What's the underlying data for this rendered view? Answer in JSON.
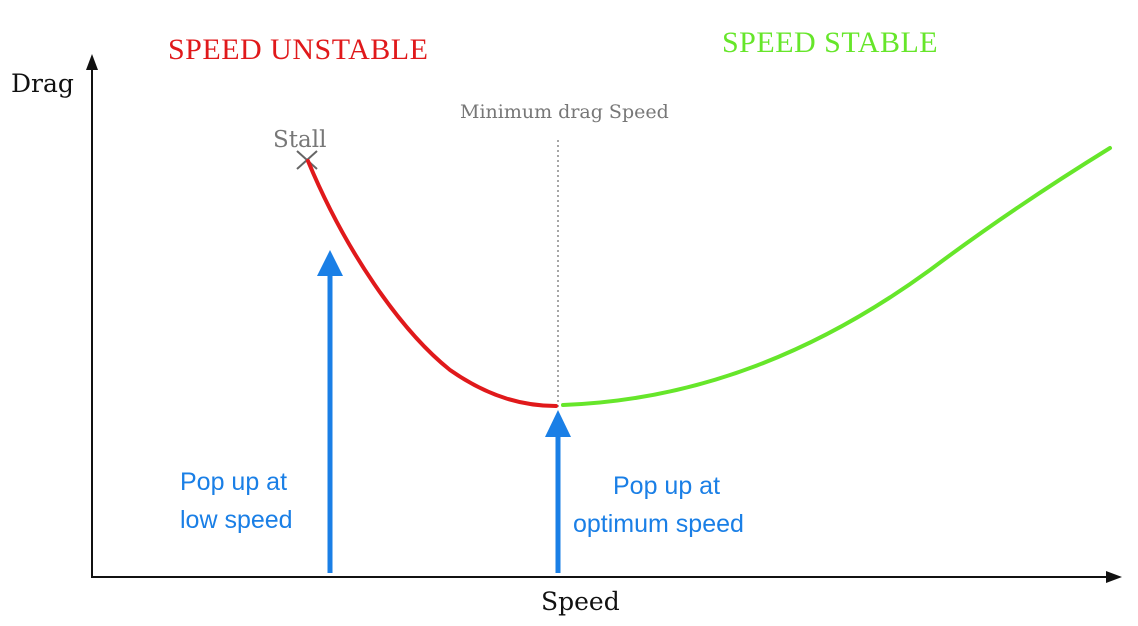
{
  "regions": {
    "unstable": {
      "label": "SPEED UNSTABLE",
      "color": "#e0191b"
    },
    "stable": {
      "label": "SPEED STABLE",
      "color": "#66e62a"
    }
  },
  "axes": {
    "y_label": "Drag",
    "x_label": "Speed"
  },
  "annotations": {
    "minimum_drag_speed": "Minimum drag Speed",
    "stall": "Stall",
    "pop_up_low": {
      "line1": "Pop up at",
      "line2": "low speed"
    },
    "pop_up_optimum": {
      "line1": "Pop up at",
      "line2": "optimum speed"
    }
  },
  "colors": {
    "unstable_curve": "#e0191b",
    "stable_curve": "#66e62a",
    "arrow": "#1a7fe6",
    "axis": "#111111",
    "annotation_gray": "#777777"
  }
}
